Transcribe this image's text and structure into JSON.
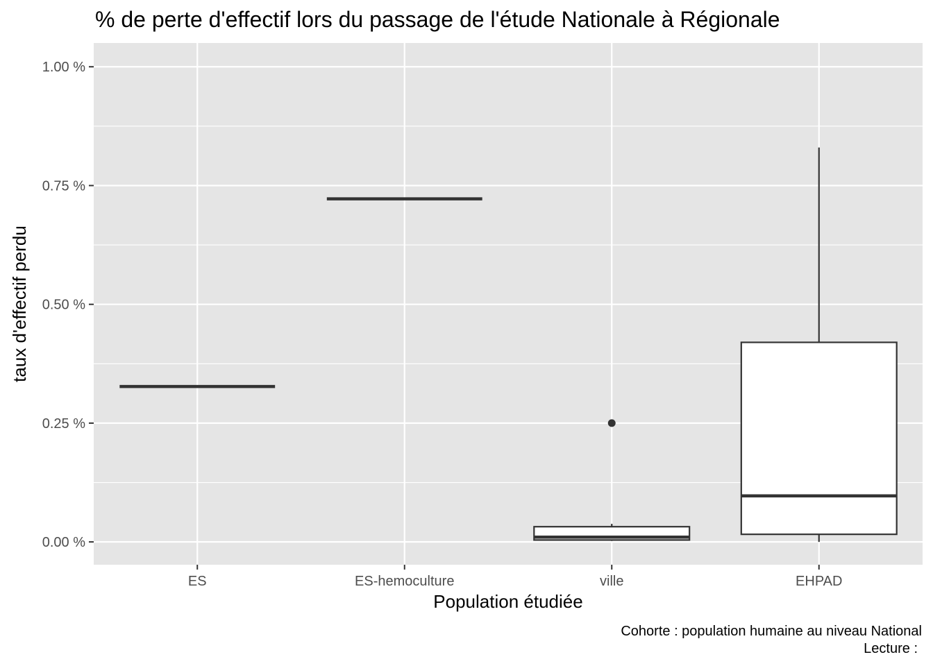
{
  "chart_data": {
    "type": "boxplot",
    "title": "% de perte d'effectif lors du passage de l'étude Nationale à Régionale",
    "xlabel": "Population étudiée",
    "ylabel": "taux d'effectif perdu",
    "caption_lines": [
      "Cohorte : population humaine au niveau National",
      "Lecture :"
    ],
    "categories": [
      "ES",
      "ES-hemoculture",
      "ville",
      "EHPAD"
    ],
    "y_ticks": [
      {
        "value": 0.0,
        "label": "0.00 %"
      },
      {
        "value": 0.25,
        "label": "0.25 %"
      },
      {
        "value": 0.5,
        "label": "0.50 %"
      },
      {
        "value": 0.75,
        "label": "0.75 %"
      },
      {
        "value": 1.0,
        "label": "1.00 %"
      }
    ],
    "ylim": [
      -0.048,
      1.05
    ],
    "grid": true,
    "legend": "none",
    "boxes": [
      {
        "category": "ES",
        "min": 0.327,
        "q1": 0.327,
        "median": 0.327,
        "q3": 0.327,
        "max": 0.327,
        "outliers": []
      },
      {
        "category": "ES-hemoculture",
        "min": 0.722,
        "q1": 0.722,
        "median": 0.722,
        "q3": 0.722,
        "max": 0.722,
        "outliers": []
      },
      {
        "category": "ville",
        "min": 0.002,
        "q1": 0.004,
        "median": 0.01,
        "q3": 0.032,
        "max": 0.038,
        "outliers": [
          0.25
        ]
      },
      {
        "category": "EHPAD",
        "min": 0.0,
        "q1": 0.016,
        "median": 0.097,
        "q3": 0.42,
        "max": 0.83,
        "outliers": []
      }
    ],
    "colors": {
      "panel": "#e5e5e5",
      "grid": "#ffffff",
      "box_fill": "#ffffff",
      "box_line": "#333333"
    }
  }
}
